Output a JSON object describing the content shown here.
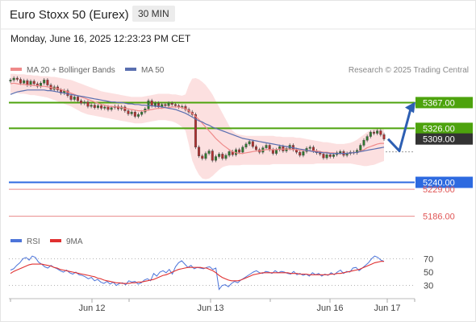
{
  "header": {
    "title": "Euro Stoxx 50 (Eurex)",
    "timeframe": "30 MIN",
    "timestamp": "Monday, June 16, 2025 12:23:23 PM CET"
  },
  "legend": {
    "ma20_label": "MA 20 + Bollinger Bands",
    "ma50_label": "MA 50",
    "source": "Research © 2025 Trading Central",
    "rsi_label": "RSI",
    "rsi_ma_label": "9MA"
  },
  "colors": {
    "ma20": "#ef8a8a",
    "ma50": "#5a6fb0",
    "bollinger_fill": "#fbd5d5",
    "resistance": "#4da30d",
    "support_pivot": "#2d6ae0",
    "support": "#e88a8a",
    "current": "#333333",
    "arrow": "#2d5fb3",
    "rsi": "#4c74d9",
    "rsi_ma": "#e03030"
  },
  "chart_data": [
    {
      "type": "candlestick",
      "title": "Euro Stoxx 50 (Eurex)",
      "timeframe": "30 MIN",
      "x_ticks": [
        "Jun 12",
        "Jun 13",
        "Jun 16",
        "Jun 17"
      ],
      "ylim": [
        5165,
        5415
      ],
      "levels": [
        {
          "value": 5367.0,
          "label": "5367.00",
          "kind": "resistance"
        },
        {
          "value": 5326.0,
          "label": "5326.00",
          "kind": "resistance"
        },
        {
          "value": 5309.0,
          "label": "5309.00",
          "kind": "current"
        },
        {
          "value": 5240.0,
          "label": "5240.00",
          "kind": "pivot"
        },
        {
          "value": 5229.0,
          "label": "5229.00",
          "kind": "support"
        },
        {
          "value": 5186.0,
          "label": "5186.00",
          "kind": "support"
        }
      ],
      "close": [
        5403,
        5406,
        5404,
        5398,
        5402,
        5395,
        5401,
        5397,
        5393,
        5398,
        5403,
        5395,
        5388,
        5392,
        5387,
        5382,
        5386,
        5378,
        5372,
        5376,
        5370,
        5366,
        5368,
        5361,
        5363,
        5359,
        5362,
        5358,
        5360,
        5356,
        5359,
        5361,
        5357,
        5360,
        5354,
        5349,
        5352,
        5345,
        5348,
        5352,
        5357,
        5370,
        5362,
        5366,
        5360,
        5364,
        5362,
        5366,
        5364,
        5362,
        5360,
        5361,
        5356,
        5352,
        5348,
        5296,
        5282,
        5278,
        5286,
        5290,
        5275,
        5281,
        5285,
        5278,
        5283,
        5289,
        5284,
        5292,
        5288,
        5296,
        5301,
        5305,
        5297,
        5292,
        5288,
        5295,
        5299,
        5292,
        5286,
        5292,
        5297,
        5290,
        5294,
        5299,
        5292,
        5288,
        5283,
        5289,
        5294,
        5296,
        5290,
        5287,
        5285,
        5279,
        5284,
        5281,
        5284,
        5287,
        5289,
        5283,
        5286,
        5288,
        5287,
        5291,
        5299,
        5307,
        5313,
        5320,
        5318,
        5322,
        5316,
        5309
      ],
      "ma20": [
        5397,
        5398,
        5397,
        5396,
        5396,
        5395,
        5395,
        5394,
        5394,
        5393,
        5393,
        5392,
        5391,
        5390,
        5389,
        5388,
        5386,
        5384,
        5382,
        5380,
        5378,
        5376,
        5374,
        5372,
        5370,
        5368,
        5366,
        5364,
        5363,
        5361,
        5361,
        5360,
        5360,
        5359,
        5358,
        5357,
        5356,
        5355,
        5354,
        5354,
        5354,
        5355,
        5356,
        5357,
        5358,
        5358,
        5359,
        5359,
        5360,
        5360,
        5360,
        5359,
        5357,
        5354,
        5350,
        5345,
        5340,
        5334,
        5328,
        5322,
        5316,
        5310,
        5305,
        5300,
        5296,
        5292,
        5289,
        5287,
        5286,
        5286,
        5287,
        5288,
        5289,
        5290,
        5290,
        5291,
        5292,
        5292,
        5292,
        5292,
        5293,
        5293,
        5293,
        5293,
        5292,
        5292,
        5291,
        5291,
        5291,
        5290,
        5290,
        5290,
        5289,
        5288,
        5288,
        5287,
        5287,
        5286,
        5286,
        5286,
        5286,
        5287,
        5287,
        5288,
        5290,
        5292,
        5295,
        5297,
        5299,
        5301,
        5302,
        5302
      ],
      "ma50": [
        5380,
        5382,
        5384,
        5385,
        5386,
        5387,
        5387,
        5387,
        5387,
        5387,
        5387,
        5386,
        5386,
        5385,
        5384,
        5383,
        5382,
        5381,
        5380,
        5379,
        5378,
        5377,
        5376,
        5375,
        5374,
        5373,
        5372,
        5371,
        5370,
        5369,
        5368,
        5368,
        5367,
        5367,
        5366,
        5365,
        5365,
        5364,
        5364,
        5363,
        5363,
        5362,
        5362,
        5361,
        5361,
        5360,
        5359,
        5358,
        5357,
        5356,
        5354,
        5352,
        5350,
        5347,
        5344,
        5341,
        5338,
        5336,
        5333,
        5331,
        5328,
        5326,
        5324,
        5322,
        5320,
        5318,
        5316,
        5314,
        5312,
        5310,
        5309,
        5308,
        5307,
        5306,
        5305,
        5304,
        5303,
        5302,
        5301,
        5300,
        5299,
        5298,
        5297,
        5296,
        5295,
        5294,
        5293,
        5292,
        5291,
        5290,
        5289,
        5288,
        5288,
        5287,
        5287,
        5286,
        5286,
        5286,
        5286,
        5286,
        5286,
        5287,
        5287,
        5288,
        5289,
        5290,
        5291,
        5292,
        5293,
        5294,
        5295,
        5296
      ],
      "bollinger_upper": [
        5413,
        5413,
        5412,
        5412,
        5412,
        5411,
        5411,
        5410,
        5410,
        5409,
        5409,
        5409,
        5408,
        5408,
        5407,
        5406,
        5405,
        5404,
        5403,
        5401,
        5399,
        5397,
        5395,
        5393,
        5391,
        5389,
        5387,
        5385,
        5384,
        5383,
        5382,
        5381,
        5380,
        5379,
        5378,
        5377,
        5376,
        5376,
        5376,
        5376,
        5377,
        5378,
        5379,
        5380,
        5381,
        5381,
        5381,
        5381,
        5380,
        5380,
        5379,
        5378,
        5380,
        5395,
        5405,
        5406,
        5404,
        5400,
        5395,
        5388,
        5380,
        5370,
        5360,
        5350,
        5340,
        5330,
        5322,
        5318,
        5316,
        5315,
        5314,
        5314,
        5314,
        5314,
        5314,
        5314,
        5314,
        5314,
        5314,
        5313,
        5313,
        5312,
        5312,
        5312,
        5312,
        5311,
        5311,
        5310,
        5309,
        5308,
        5307,
        5306,
        5305,
        5304,
        5304,
        5303,
        5302,
        5301,
        5301,
        5301,
        5302,
        5303,
        5305,
        5308,
        5312,
        5316,
        5320,
        5323,
        5325,
        5326,
        5326,
        5325
      ],
      "bollinger_lower": [
        5382,
        5383,
        5382,
        5381,
        5381,
        5380,
        5379,
        5379,
        5378,
        5377,
        5376,
        5375,
        5373,
        5371,
        5369,
        5367,
        5365,
        5363,
        5361,
        5358,
        5355,
        5352,
        5350,
        5348,
        5347,
        5346,
        5345,
        5344,
        5343,
        5342,
        5341,
        5340,
        5339,
        5338,
        5337,
        5336,
        5335,
        5334,
        5334,
        5334,
        5335,
        5336,
        5337,
        5338,
        5339,
        5339,
        5339,
        5338,
        5337,
        5335,
        5332,
        5328,
        5322,
        5300,
        5275,
        5262,
        5252,
        5246,
        5245,
        5246,
        5250,
        5255,
        5260,
        5264,
        5266,
        5267,
        5267,
        5267,
        5267,
        5268,
        5268,
        5268,
        5268,
        5268,
        5268,
        5268,
        5268,
        5268,
        5269,
        5269,
        5269,
        5269,
        5269,
        5269,
        5269,
        5269,
        5269,
        5269,
        5269,
        5269,
        5269,
        5270,
        5270,
        5270,
        5270,
        5270,
        5270,
        5270,
        5270,
        5270,
        5270,
        5270,
        5269,
        5268,
        5267,
        5266,
        5266,
        5267,
        5268,
        5270,
        5272,
        5274
      ],
      "forecast": [
        5309,
        5290,
        5367
      ]
    },
    {
      "type": "line",
      "title": "RSI",
      "ylim": [
        15,
        85
      ],
      "y_ticks": [
        70,
        50,
        30
      ],
      "series": [
        {
          "name": "RSI",
          "values": [
            53,
            55,
            60,
            64,
            70,
            72,
            68,
            74,
            72,
            65,
            62,
            58,
            56,
            60,
            57,
            55,
            52,
            50,
            53,
            49,
            47,
            50,
            46,
            45,
            43,
            40,
            42,
            37,
            39,
            35,
            33,
            36,
            32,
            35,
            30,
            33,
            34,
            31,
            37,
            35,
            36,
            32,
            34,
            38,
            40,
            37,
            48,
            44,
            50,
            52,
            49,
            54,
            47,
            58,
            64,
            67,
            62,
            57,
            60,
            55,
            57,
            56,
            55,
            57,
            58,
            54,
            56,
            24,
            30,
            31,
            28,
            33,
            36,
            34,
            38,
            41,
            44,
            47,
            50,
            52,
            49,
            48,
            51,
            50,
            48,
            52,
            49,
            51,
            50,
            48,
            47,
            51,
            46,
            48,
            45,
            47,
            44,
            49,
            46,
            48,
            44,
            47,
            45,
            49,
            46,
            50,
            53,
            48,
            51,
            50,
            56,
            57,
            52,
            56,
            60,
            64,
            70,
            74,
            72,
            68,
            66
          ]
        },
        {
          "name": "9MA",
          "values": [
            48,
            51,
            53,
            55,
            57,
            59,
            61,
            62,
            62,
            62,
            62,
            61,
            60,
            59,
            57,
            56,
            54,
            53,
            52,
            51,
            50,
            49,
            48,
            47,
            46,
            45,
            44,
            43,
            41,
            40,
            38,
            37,
            36,
            35,
            34,
            34,
            33,
            33,
            33,
            34,
            34,
            35,
            35,
            36,
            37,
            38,
            39,
            41,
            43,
            45,
            46,
            48,
            50,
            52,
            54,
            55,
            56,
            57,
            57,
            57,
            57,
            57,
            56,
            56,
            54,
            52,
            49,
            45,
            42,
            40,
            38,
            37,
            37,
            37,
            38,
            40,
            42,
            44,
            46,
            47,
            48,
            49,
            49,
            49,
            49,
            49,
            49,
            49,
            49,
            49,
            48,
            48,
            48,
            47,
            47,
            47,
            46,
            46,
            46,
            46,
            46,
            46,
            46,
            47,
            47,
            48,
            48,
            49,
            50,
            51,
            52,
            53,
            54,
            56,
            58,
            60,
            62,
            64,
            65,
            66,
            66
          ]
        }
      ]
    }
  ]
}
